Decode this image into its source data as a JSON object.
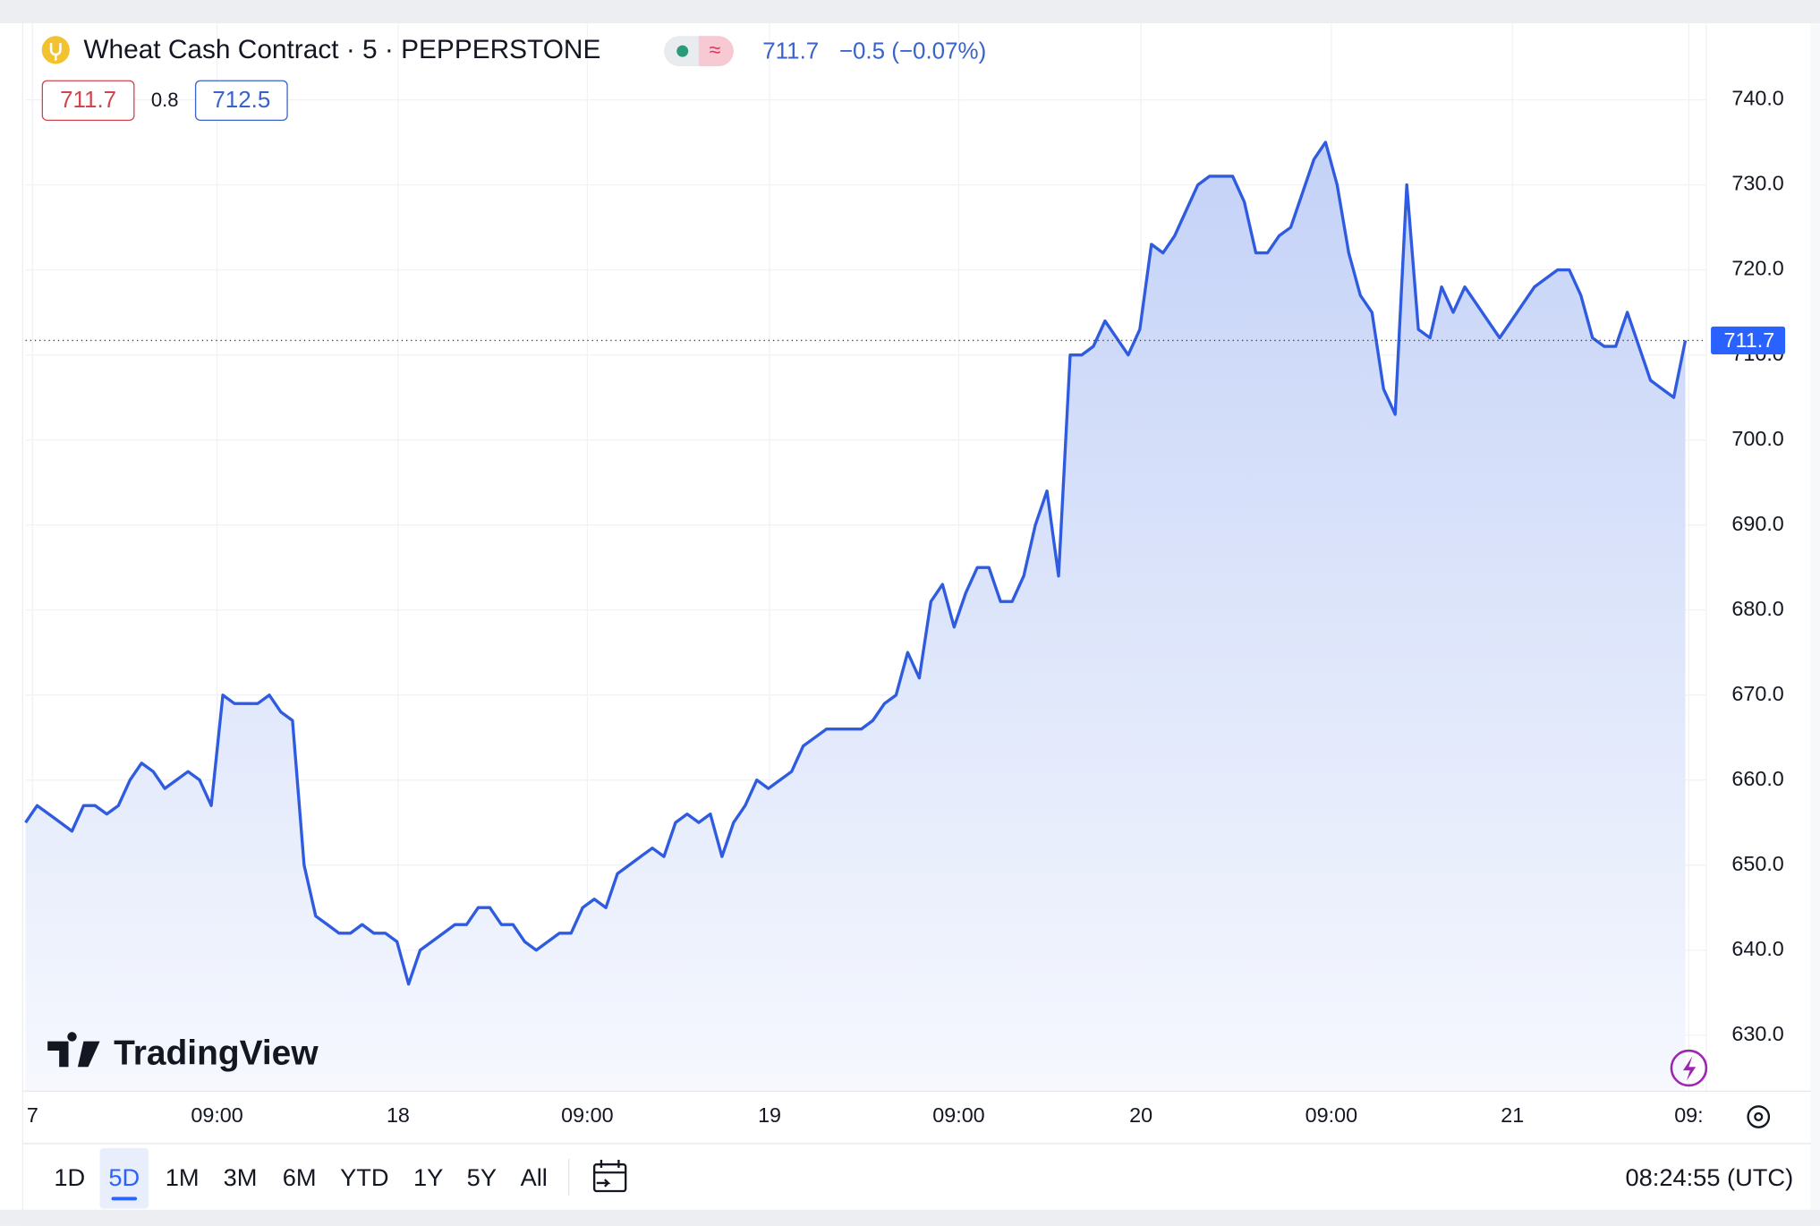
{
  "header": {
    "title": "Wheat Cash Contract · 5 · PEPPERSTONE",
    "last": "711.7",
    "change": "−0.5 (−0.07%)",
    "bid": "711.7",
    "spread": "0.8",
    "ask": "712.5"
  },
  "watermark": "TradingView",
  "toolbar": {
    "ranges": [
      "1D",
      "5D",
      "1M",
      "3M",
      "6M",
      "YTD",
      "1Y",
      "5Y",
      "All"
    ],
    "active": 1,
    "clock": "08:24:55 (UTC)"
  },
  "chart_data": {
    "type": "area",
    "color": "#2f5be0",
    "grid": true,
    "last_price": 711.7,
    "values": [
      655,
      657,
      656,
      655,
      654,
      657,
      657,
      656,
      657,
      660,
      662,
      661,
      659,
      660,
      661,
      660,
      657,
      670,
      669,
      669,
      669,
      670,
      668,
      667,
      650,
      644,
      643,
      642,
      642,
      643,
      642,
      642,
      641,
      636,
      640,
      641,
      642,
      643,
      643,
      645,
      645,
      643,
      643,
      641,
      640,
      641,
      642,
      642,
      645,
      646,
      645,
      649,
      650,
      651,
      652,
      651,
      655,
      656,
      655,
      656,
      651,
      655,
      657,
      660,
      659,
      660,
      661,
      664,
      665,
      666,
      666,
      666,
      666,
      667,
      669,
      670,
      675,
      672,
      681,
      683,
      678,
      682,
      685,
      685,
      681,
      681,
      684,
      690,
      694,
      684,
      710,
      710,
      711,
      714,
      712,
      710,
      713,
      723,
      722,
      724,
      727,
      730,
      731,
      731,
      731,
      728,
      722,
      722,
      724,
      725,
      729,
      733,
      735,
      730,
      722,
      717,
      715,
      706,
      703,
      730,
      713,
      712,
      718,
      715,
      718,
      716,
      714,
      712,
      714,
      716,
      718,
      719,
      720,
      720,
      717,
      712,
      711,
      711,
      715,
      711,
      707,
      706,
      705,
      711.7
    ],
    "xlim": [
      0,
      144.8
    ],
    "ylim": [
      623.4,
      749
    ],
    "xticks": [
      {
        "value": 0.6,
        "label": "7"
      },
      {
        "value": 16.5,
        "label": "09:00"
      },
      {
        "value": 32.1,
        "label": "18"
      },
      {
        "value": 48.4,
        "label": "09:00"
      },
      {
        "value": 64.1,
        "label": "19"
      },
      {
        "value": 80.4,
        "label": "09:00"
      },
      {
        "value": 96.1,
        "label": "20"
      },
      {
        "value": 112.5,
        "label": "09:00"
      },
      {
        "value": 128.1,
        "label": "21"
      },
      {
        "value": 143.3,
        "label": "09:"
      }
    ],
    "yticks": [
      {
        "value": 630,
        "label": "630.0"
      },
      {
        "value": 640,
        "label": "640.0"
      },
      {
        "value": 650,
        "label": "650.0"
      },
      {
        "value": 660,
        "label": "660.0"
      },
      {
        "value": 670,
        "label": "670.0"
      },
      {
        "value": 680,
        "label": "680.0"
      },
      {
        "value": 690,
        "label": "690.0"
      },
      {
        "value": 700,
        "label": "700.0"
      },
      {
        "value": 710,
        "label": "710.0"
      },
      {
        "value": 720,
        "label": "720.0"
      },
      {
        "value": 730,
        "label": "730.0"
      },
      {
        "value": 740,
        "label": "740.0"
      }
    ]
  }
}
